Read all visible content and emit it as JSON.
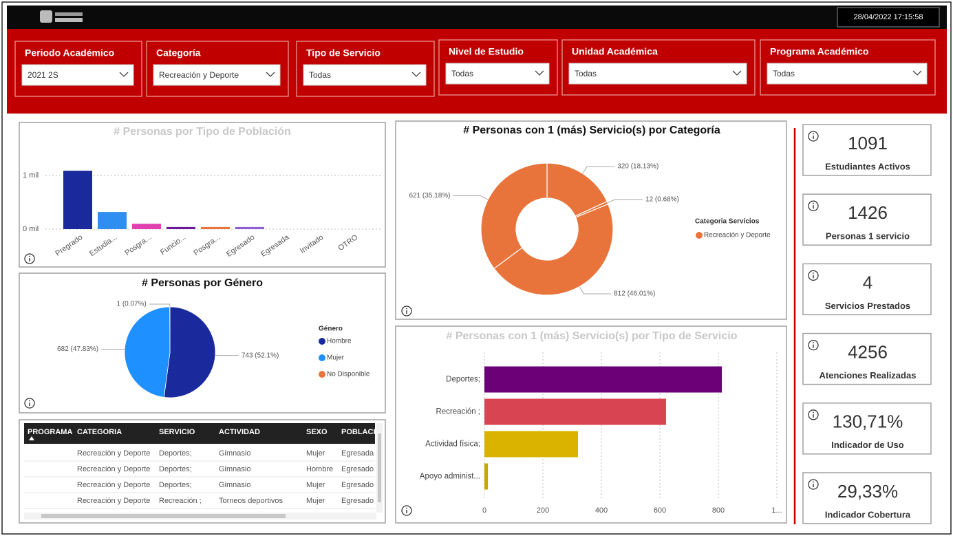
{
  "header": {
    "datetime": "28/04/2022 17:15:58"
  },
  "filters": [
    {
      "label": "Periodo Académico",
      "value": "2021 2S"
    },
    {
      "label": "Categoría",
      "value": "Recreación y Deporte"
    },
    {
      "label": "Tipo de Servicio",
      "value": "Todas"
    },
    {
      "label": "Nivel de Estudio",
      "value": "Todas"
    },
    {
      "label": "Unidad Académica",
      "value": "Todas"
    },
    {
      "label": "Programa Académico",
      "value": "Todas"
    }
  ],
  "chart_data": [
    {
      "type": "bar",
      "title": "# Personas por Tipo de Población",
      "categories": [
        "Pregrado",
        "Estudia...",
        "Posgra...",
        "Funcio...",
        "Posgra...",
        "Egresado",
        "Egresada",
        "Invitado",
        "OTRO"
      ],
      "values": [
        1090,
        320,
        100,
        40,
        40,
        40,
        0,
        0,
        0
      ],
      "colors": [
        "#1a2a9c",
        "#2e8ff0",
        "#e040b0",
        "#6a1b9a",
        "#e8743b",
        "#8a5fd8",
        "#d9b300",
        "#4caf50",
        "#888888"
      ],
      "ylim": [
        0,
        1400
      ],
      "yticks": [
        {
          "value": 0,
          "label": "0 mil"
        },
        {
          "value": 1000,
          "label": "1 mil"
        }
      ],
      "grid": true
    },
    {
      "type": "pie",
      "title": "# Personas por Género",
      "legend_title": "Género",
      "categories": [
        "Hombre",
        "Mujer",
        "No Disponible"
      ],
      "values": [
        743,
        682,
        1
      ],
      "value_labels": [
        "743 (52.1%)",
        "682 (47.83%)",
        "1 (0.07%)"
      ],
      "colors": [
        "#1a2a9c",
        "#1e90ff",
        "#e8743b"
      ]
    },
    {
      "type": "donut",
      "title": "# Personas con 1 (más) Servicio(s) por Categoría",
      "legend_title": "Categoria Servicios",
      "series": [
        {
          "name": "Recreación y Deporte",
          "color": "#e8743b",
          "values": [
            320,
            12,
            812,
            621
          ],
          "value_labels": [
            "320 (18.13%)",
            "12 (0.68%)",
            "812 (46.01%)",
            "621 (35.18%)"
          ]
        }
      ]
    },
    {
      "type": "hbar",
      "title": "# Personas con 1 (más) Servicio(s) por Tipo de Servicio",
      "categories": [
        "Deportes;",
        "Recreación ;",
        "Actividad física;",
        "Apoyo administ..."
      ],
      "values": [
        812,
        621,
        320,
        12
      ],
      "colors": [
        "#6b0077",
        "#d94452",
        "#d9b300",
        "#c8a800"
      ],
      "xlim": [
        0,
        1000
      ],
      "xticks": [
        0,
        200,
        400,
        600,
        800,
        {
          "value": 1000,
          "label": "1..."
        }
      ],
      "grid": true
    }
  ],
  "table": {
    "columns": [
      "PROGRAMA",
      "CATEGORIA",
      "SERVICIO",
      "ACTIVIDAD",
      "SEXO",
      "POBLACIO"
    ],
    "rows": [
      [
        "Recreación y Deporte",
        "Deportes;",
        "Gimnasio",
        "Mujer",
        "Egresada"
      ],
      [
        "Recreación y Deporte",
        "Deportes;",
        "Gimnasio",
        "Hombre",
        "Egresado"
      ],
      [
        "Recreación y Deporte",
        "Deportes;",
        "Gimnasio",
        "Mujer",
        "Egresado"
      ],
      [
        "Recreación y Deporte",
        "Recreación ;",
        "Torneos deportivos",
        "Mujer",
        "Egresado"
      ]
    ]
  },
  "kpis": [
    {
      "value": "1091",
      "label": "Estudiantes Activos"
    },
    {
      "value": "1426",
      "label": "Personas 1 servicio"
    },
    {
      "value": "4",
      "label": "Servicios Prestados"
    },
    {
      "value": "4256",
      "label": "Atenciones Realizadas"
    },
    {
      "value": "130,71%",
      "label": "Indicador de Uso"
    },
    {
      "value": "29,33%",
      "label": "Indicador Cobertura"
    }
  ]
}
